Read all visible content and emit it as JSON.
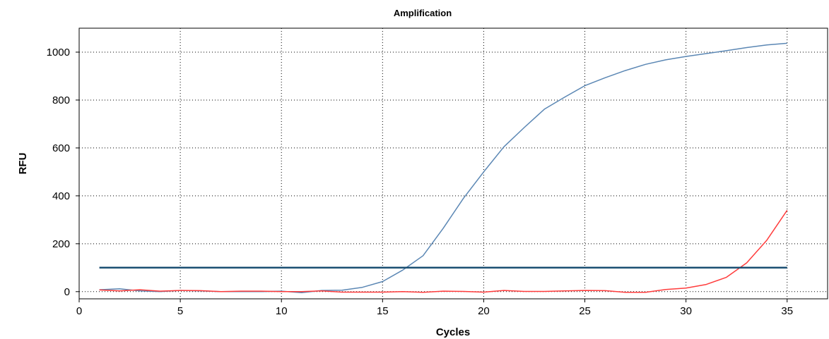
{
  "chart_data": {
    "type": "line",
    "title": "Amplification",
    "xlabel": "Cycles",
    "ylabel": "RFU",
    "xlim": [
      0,
      37
    ],
    "ylim": [
      -30,
      1100
    ],
    "xticks": [
      0,
      5,
      10,
      15,
      20,
      25,
      30,
      35
    ],
    "yticks": [
      0,
      200,
      400,
      600,
      800,
      1000
    ],
    "grid": true,
    "legend": "none",
    "series": [
      {
        "color": "#5b87b4",
        "x": [
          1,
          2,
          3,
          4,
          5,
          6,
          7,
          8,
          9,
          10,
          11,
          12,
          13,
          14,
          15,
          16,
          17,
          18,
          19,
          20,
          21,
          22,
          23,
          24,
          25,
          26,
          27,
          28,
          29,
          30,
          31,
          32,
          33,
          34,
          35
        ],
        "values": [
          8,
          12,
          3,
          0,
          5,
          3,
          0,
          0,
          0,
          2,
          -4,
          5,
          6,
          18,
          42,
          90,
          150,
          265,
          390,
          500,
          605,
          685,
          762,
          812,
          860,
          893,
          923,
          949,
          968,
          982,
          994,
          1006,
          1019,
          1030,
          1037
        ]
      },
      {
        "color": "#ff3c3c",
        "x": [
          1,
          2,
          3,
          4,
          5,
          6,
          7,
          8,
          9,
          10,
          11,
          12,
          13,
          14,
          15,
          16,
          17,
          18,
          19,
          20,
          21,
          22,
          23,
          24,
          25,
          26,
          27,
          28,
          29,
          30,
          31,
          32,
          33,
          34,
          35
        ],
        "values": [
          7,
          3,
          8,
          2,
          5,
          4,
          0,
          2,
          2,
          0,
          0,
          3,
          -2,
          -2,
          -2,
          0,
          -3,
          2,
          1,
          -2,
          5,
          1,
          1,
          3,
          5,
          4,
          -3,
          -3,
          9,
          15,
          30,
          60,
          120,
          215,
          340
        ]
      },
      {
        "color": "#1b4f72",
        "x": [
          1,
          35
        ],
        "values": [
          100,
          100
        ]
      }
    ]
  }
}
